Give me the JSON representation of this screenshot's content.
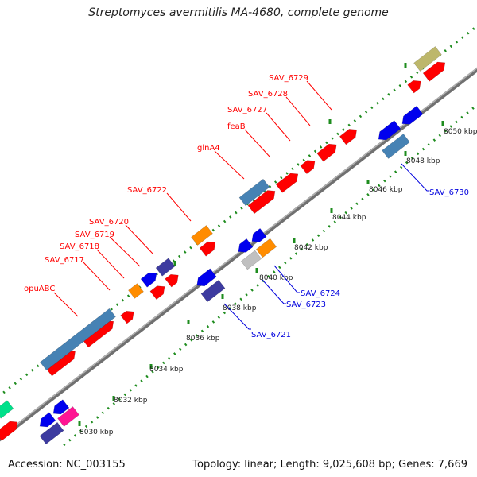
{
  "title": "Streptomyces avermitilis MA-4680, complete genome",
  "accession": "Accession: NC_003155",
  "summary": "Topology: linear; Length: 9,025,608 bp; Genes: 7,669",
  "colors": {
    "backbone": "#8c8c8c",
    "tick_dots": "#1e8c1e",
    "forward_label": "#ff0000",
    "reverse_label": "#0000dd",
    "red": "#ff0000",
    "blue": "#0000ee",
    "purple": "#3d3ba0",
    "steelblue": "#4682b4",
    "orange": "#ff8c00",
    "khaki": "#bdb76b",
    "silver": "#c0c0c0",
    "magenta": "#ff1493",
    "green": "#00e08a"
  },
  "ruler_labels": [
    "8030 kbp",
    "8032 kbp",
    "8034 kbp",
    "8036 kbp",
    "8038 kbp",
    "8040 kbp",
    "8042 kbp",
    "8044 kbp",
    "8046 kbp",
    "8048 kbp",
    "8050 kbp"
  ],
  "forward_gene_labels": [
    "opuABC",
    "SAV_6717",
    "SAV_6718",
    "SAV_6719",
    "SAV_6720",
    "SAV_6722",
    "glnA4",
    "feaB",
    "SAV_6727",
    "SAV_6728",
    "SAV_6729"
  ],
  "reverse_gene_labels": [
    "SAV_6721",
    "SAV_6723",
    "SAV_6724",
    "SAV_6730"
  ]
}
